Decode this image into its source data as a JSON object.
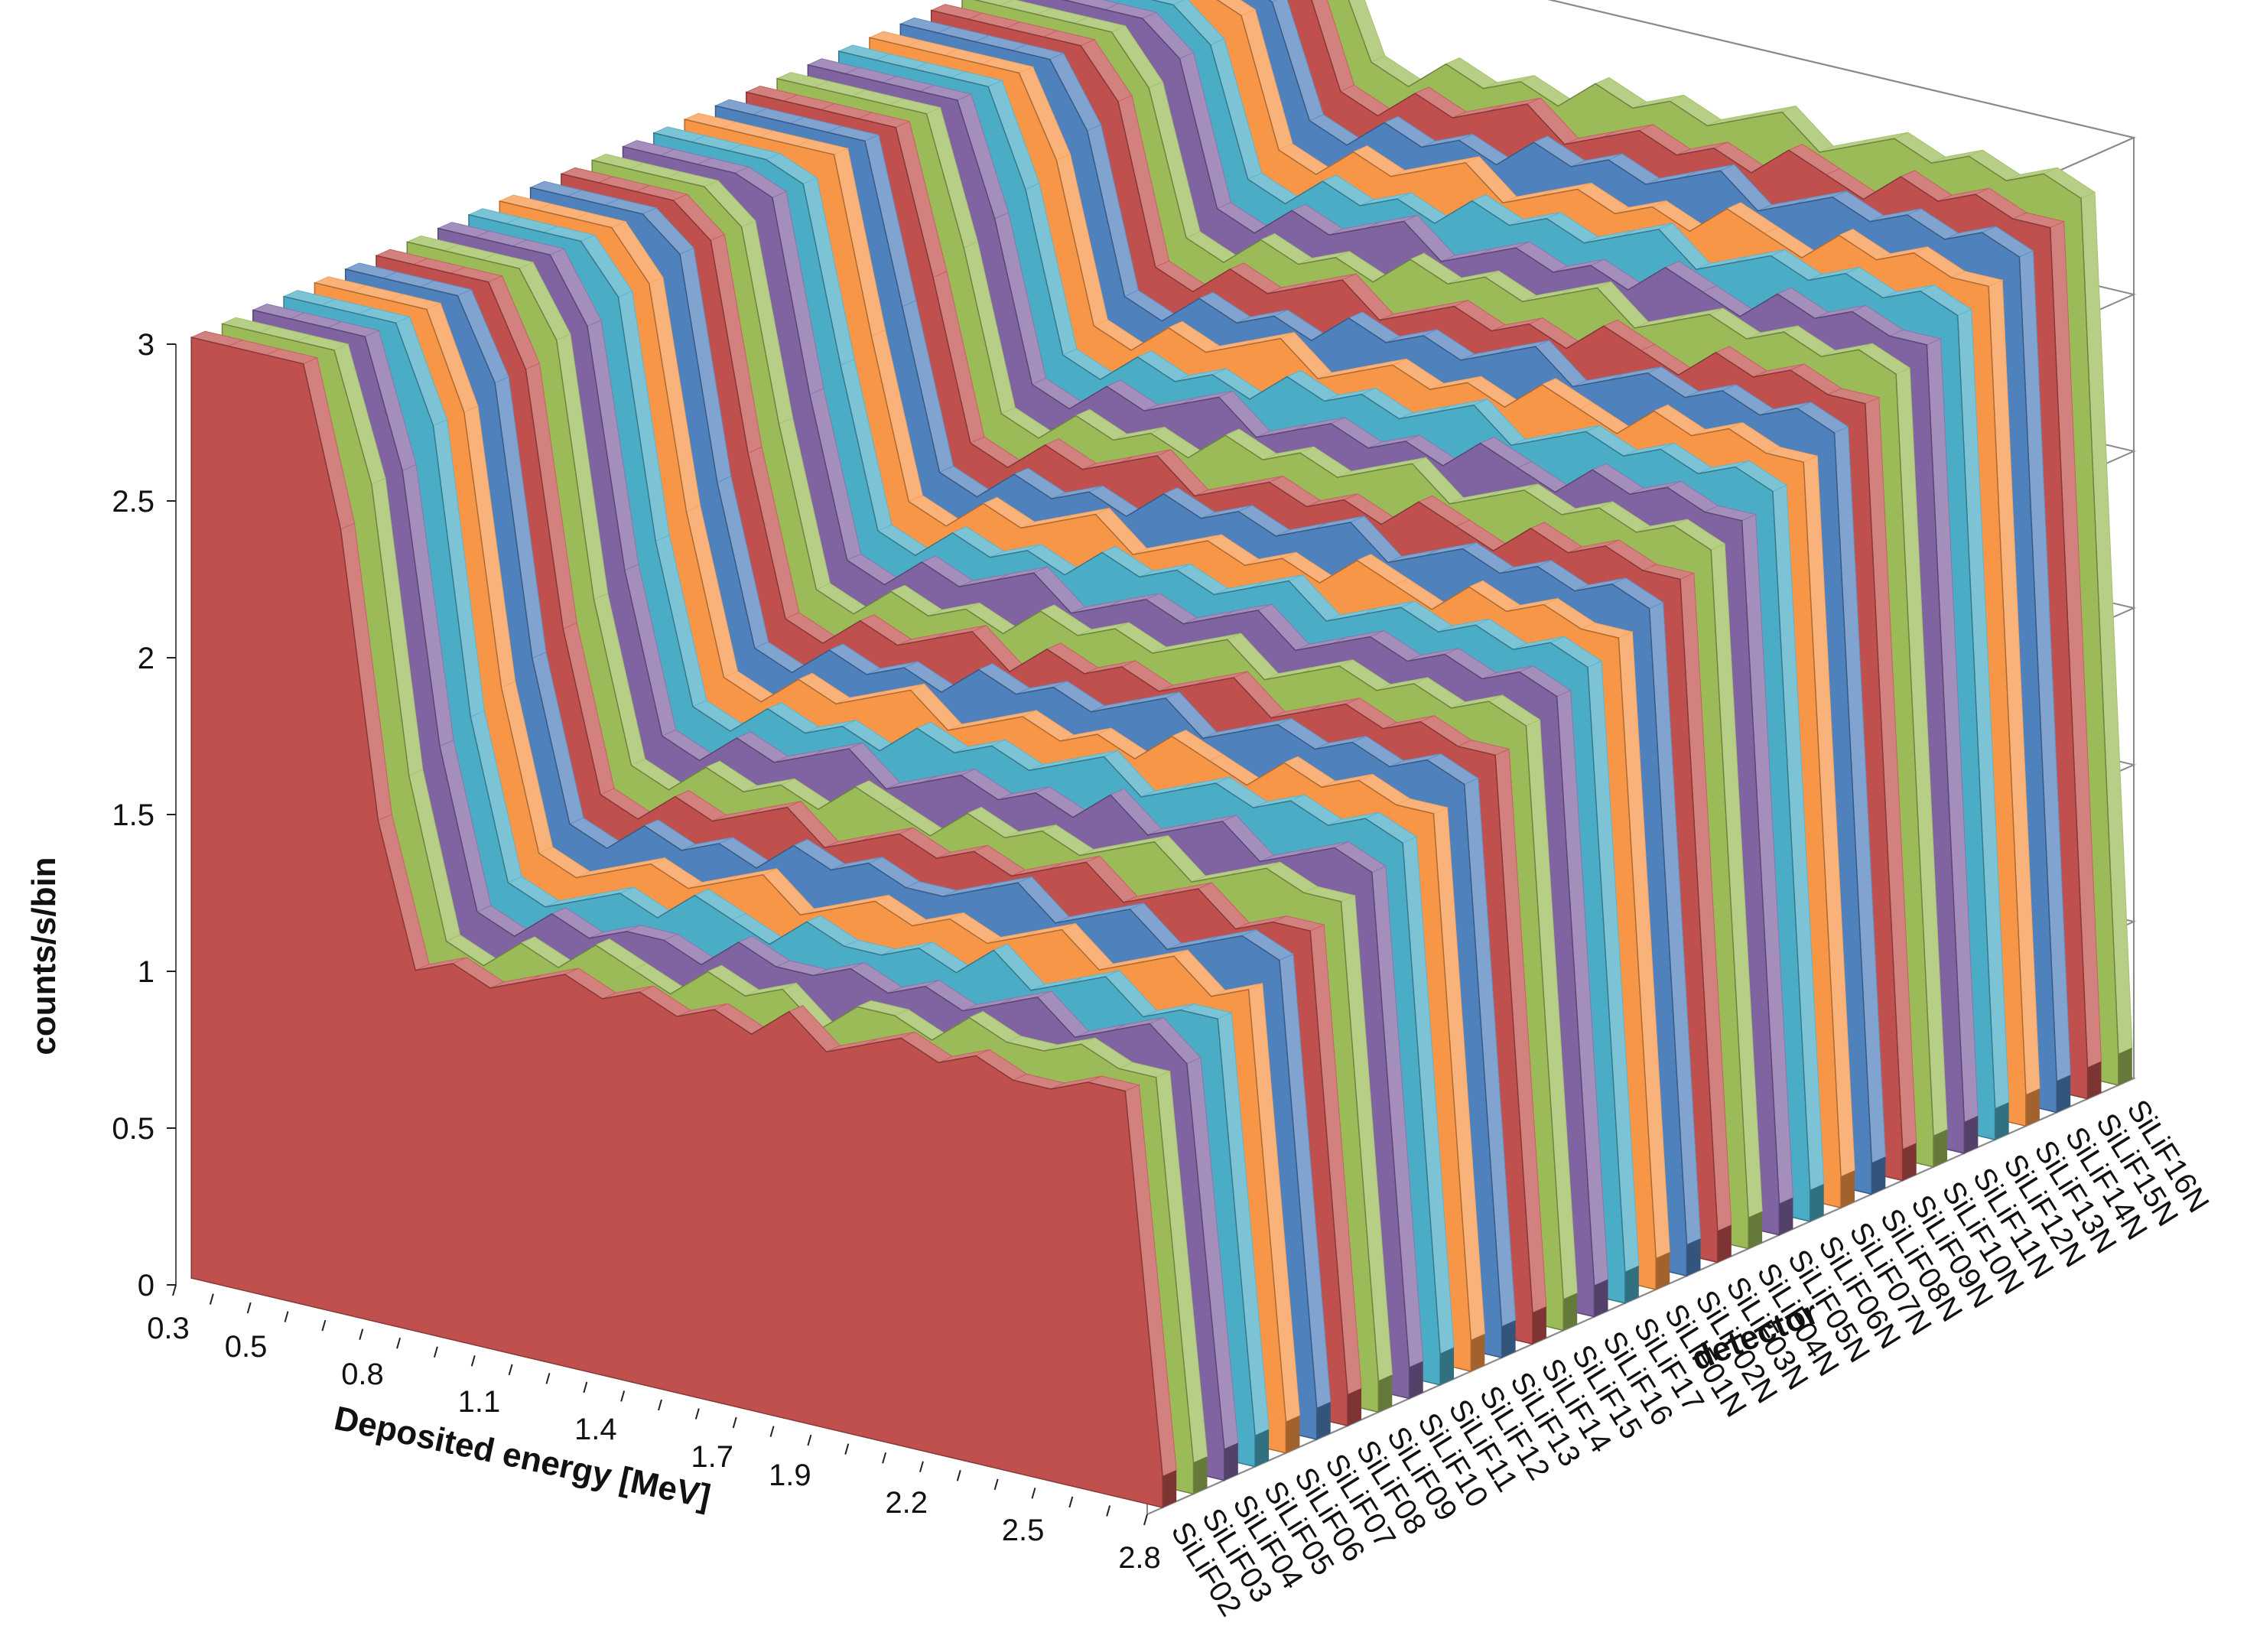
{
  "chart_data": {
    "type": "area",
    "subtype": "3d-ribbon",
    "title": "",
    "xlabel": "Deposited energy [MeV]",
    "ylabel": "counts/s/bin",
    "zlabel": "detector",
    "ylim": [
      0,
      3
    ],
    "yticks": [
      "0",
      "0.5",
      "1",
      "1.5",
      "2",
      "2.5",
      "3"
    ],
    "xticks": [
      "0.3",
      "0.5",
      "0.8",
      "1.1",
      "1.4",
      "1.7",
      "1.9",
      "2.2",
      "2.5",
      "2.8"
    ],
    "x_range": [
      0.3,
      2.8
    ],
    "values_clipped_at_ylim": true,
    "grid": true,
    "legend": "none",
    "series_colors": [
      "#c0504d",
      "#9bbb59",
      "#8064a2",
      "#4bacc6",
      "#f79646",
      "#4f81bd"
    ],
    "series": [
      {
        "name": "SiLiF02",
        "values": [
          3.0,
          3.0,
          3.0,
          3.0,
          2.5,
          1.6,
          1.15,
          1.2,
          1.15,
          1.2,
          1.25,
          1.2,
          1.25,
          1.2,
          1.25,
          1.2,
          1.3,
          1.2,
          1.25,
          1.3,
          1.25,
          1.3,
          1.25,
          1.25,
          1.3,
          1.3,
          0.1
        ]
      },
      {
        "name": "SiLiF03",
        "values": [
          3.0,
          3.0,
          3.0,
          3.0,
          2.6,
          1.7,
          1.2,
          1.15,
          1.25,
          1.2,
          1.3,
          1.25,
          1.2,
          1.3,
          1.25,
          1.3,
          1.2,
          1.3,
          1.3,
          1.25,
          1.35,
          1.3,
          1.3,
          1.35,
          1.3,
          1.3,
          0.1
        ]
      },
      {
        "name": "SiLiF04",
        "values": [
          3.0,
          3.0,
          3.0,
          3.0,
          2.6,
          1.75,
          1.25,
          1.2,
          1.3,
          1.25,
          1.3,
          1.3,
          1.25,
          1.35,
          1.3,
          1.3,
          1.35,
          1.3,
          1.35,
          1.3,
          1.35,
          1.4,
          1.3,
          1.35,
          1.4,
          1.3,
          0.1
        ]
      },
      {
        "name": "SiLiF05",
        "values": [
          3.0,
          3.0,
          3.0,
          3.0,
          2.7,
          1.8,
          1.3,
          1.25,
          1.3,
          1.35,
          1.3,
          1.4,
          1.35,
          1.3,
          1.4,
          1.35,
          1.35,
          1.4,
          1.35,
          1.45,
          1.35,
          1.4,
          1.45,
          1.35,
          1.4,
          1.4,
          0.1
        ]
      },
      {
        "name": "SiLiF06",
        "values": [
          3.0,
          3.0,
          3.0,
          3.0,
          2.7,
          1.85,
          1.35,
          1.3,
          1.35,
          1.4,
          1.35,
          1.4,
          1.45,
          1.35,
          1.4,
          1.45,
          1.4,
          1.45,
          1.4,
          1.45,
          1.5,
          1.4,
          1.45,
          1.5,
          1.4,
          1.45,
          0.1
        ]
      },
      {
        "name": "SiLiF07",
        "values": [
          3.0,
          3.0,
          3.0,
          3.0,
          2.75,
          1.9,
          1.4,
          1.35,
          1.45,
          1.4,
          1.45,
          1.4,
          1.5,
          1.45,
          1.5,
          1.45,
          1.45,
          1.5,
          1.55,
          1.45,
          1.5,
          1.55,
          1.45,
          1.5,
          1.55,
          1.5,
          0.1
        ]
      },
      {
        "name": "SiLiF08",
        "values": [
          3.0,
          3.0,
          3.0,
          3.0,
          2.75,
          1.95,
          1.45,
          1.4,
          1.5,
          1.45,
          1.5,
          1.55,
          1.45,
          1.5,
          1.55,
          1.5,
          1.55,
          1.5,
          1.55,
          1.6,
          1.5,
          1.55,
          1.6,
          1.5,
          1.55,
          1.55,
          0.1
        ]
      },
      {
        "name": "SiLiF09",
        "values": [
          3.0,
          3.0,
          3.0,
          3.0,
          2.8,
          2.0,
          1.5,
          1.45,
          1.55,
          1.5,
          1.55,
          1.5,
          1.6,
          1.55,
          1.5,
          1.6,
          1.55,
          1.6,
          1.55,
          1.6,
          1.65,
          1.55,
          1.6,
          1.65,
          1.6,
          1.6,
          0.1
        ]
      },
      {
        "name": "SiLiF10",
        "values": [
          3.0,
          3.0,
          3.0,
          3.0,
          2.8,
          2.05,
          1.55,
          1.5,
          1.6,
          1.55,
          1.6,
          1.65,
          1.55,
          1.6,
          1.65,
          1.6,
          1.65,
          1.6,
          1.7,
          1.6,
          1.65,
          1.7,
          1.6,
          1.65,
          1.7,
          1.65,
          0.1
        ]
      },
      {
        "name": "SiLiF11",
        "values": [
          3.0,
          3.0,
          3.0,
          3.0,
          2.85,
          2.1,
          1.6,
          1.55,
          1.65,
          1.6,
          1.65,
          1.6,
          1.7,
          1.65,
          1.7,
          1.65,
          1.7,
          1.75,
          1.65,
          1.7,
          1.75,
          1.7,
          1.75,
          1.7,
          1.75,
          1.7,
          0.1
        ]
      },
      {
        "name": "SiLiF12",
        "values": [
          3.0,
          3.0,
          3.0,
          3.0,
          2.85,
          2.15,
          1.65,
          1.6,
          1.7,
          1.65,
          1.7,
          1.75,
          1.65,
          1.7,
          1.75,
          1.7,
          1.75,
          1.7,
          1.8,
          1.75,
          1.7,
          1.8,
          1.75,
          1.8,
          1.75,
          1.75,
          0.1
        ]
      },
      {
        "name": "SiLiF13",
        "values": [
          3.0,
          3.0,
          3.0,
          3.0,
          2.9,
          2.2,
          1.7,
          1.65,
          1.75,
          1.7,
          1.75,
          1.7,
          1.8,
          1.75,
          1.8,
          1.75,
          1.8,
          1.85,
          1.75,
          1.8,
          1.85,
          1.8,
          1.85,
          1.8,
          1.85,
          1.8,
          0.1
        ]
      },
      {
        "name": "SiLiF14",
        "values": [
          3.0,
          3.0,
          3.0,
          3.0,
          2.9,
          2.25,
          1.75,
          1.7,
          1.8,
          1.75,
          1.8,
          1.85,
          1.75,
          1.85,
          1.8,
          1.85,
          1.8,
          1.85,
          1.9,
          1.8,
          1.85,
          1.9,
          1.85,
          1.9,
          1.85,
          1.85,
          0.1
        ]
      },
      {
        "name": "SiLiF15",
        "values": [
          3.0,
          3.0,
          3.0,
          3.0,
          2.9,
          2.3,
          1.8,
          1.75,
          1.85,
          1.8,
          1.85,
          1.8,
          1.9,
          1.85,
          1.9,
          1.85,
          1.9,
          1.95,
          1.85,
          1.9,
          1.95,
          1.9,
          1.95,
          1.9,
          1.95,
          1.9,
          0.1
        ]
      },
      {
        "name": "SiLiF16",
        "values": [
          3.0,
          3.0,
          3.0,
          3.0,
          2.95,
          2.35,
          1.85,
          1.8,
          1.9,
          1.85,
          1.9,
          1.95,
          1.85,
          1.9,
          1.95,
          1.9,
          1.95,
          2.0,
          1.9,
          1.95,
          2.0,
          1.95,
          2.0,
          1.95,
          2.0,
          1.95,
          0.1
        ]
      },
      {
        "name": "SiLiF17",
        "values": [
          3.0,
          3.0,
          3.0,
          3.0,
          2.95,
          2.4,
          1.9,
          1.85,
          1.95,
          1.9,
          1.95,
          1.9,
          2.0,
          1.95,
          2.0,
          1.95,
          2.0,
          2.05,
          1.95,
          2.0,
          2.05,
          2.0,
          2.05,
          2.0,
          2.05,
          2.0,
          0.1
        ]
      },
      {
        "name": "SiLiF01N",
        "values": [
          3.0,
          3.0,
          3.0,
          3.0,
          3.0,
          2.45,
          1.95,
          1.9,
          2.0,
          1.95,
          2.0,
          2.05,
          1.95,
          2.0,
          2.05,
          2.0,
          2.05,
          2.0,
          2.1,
          2.05,
          2.0,
          2.1,
          2.05,
          2.1,
          2.05,
          2.05,
          0.1
        ]
      },
      {
        "name": "SiLiF02N",
        "values": [
          3.0,
          3.0,
          3.0,
          3.0,
          3.0,
          2.5,
          2.0,
          1.95,
          2.05,
          2.0,
          2.05,
          2.0,
          2.1,
          2.05,
          2.1,
          2.05,
          2.1,
          2.15,
          2.05,
          2.1,
          2.15,
          2.1,
          2.15,
          2.1,
          2.15,
          2.1,
          0.1
        ]
      },
      {
        "name": "SiLiF03N",
        "values": [
          3.0,
          3.0,
          3.0,
          3.0,
          3.0,
          2.55,
          2.05,
          2.0,
          2.1,
          2.05,
          2.1,
          2.15,
          2.05,
          2.1,
          2.15,
          2.1,
          2.15,
          2.1,
          2.2,
          2.15,
          2.1,
          2.2,
          2.15,
          2.2,
          2.15,
          2.15,
          0.1
        ]
      },
      {
        "name": "SiLiF04N",
        "values": [
          3.0,
          3.0,
          3.0,
          3.0,
          3.0,
          2.6,
          2.1,
          2.05,
          2.15,
          2.1,
          2.15,
          2.1,
          2.2,
          2.15,
          2.2,
          2.15,
          2.2,
          2.25,
          2.15,
          2.2,
          2.25,
          2.2,
          2.25,
          2.2,
          2.25,
          2.2,
          0.1
        ]
      },
      {
        "name": "SiLiF05N",
        "values": [
          3.0,
          3.0,
          3.0,
          3.0,
          3.0,
          2.65,
          2.15,
          2.1,
          2.2,
          2.15,
          2.2,
          2.25,
          2.15,
          2.2,
          2.25,
          2.2,
          2.25,
          2.2,
          2.3,
          2.25,
          2.2,
          2.3,
          2.25,
          2.3,
          2.25,
          2.25,
          0.1
        ]
      },
      {
        "name": "SiLiF06N",
        "values": [
          3.0,
          3.0,
          3.0,
          3.0,
          3.0,
          2.7,
          2.2,
          2.15,
          2.25,
          2.2,
          2.25,
          2.2,
          2.3,
          2.25,
          2.3,
          2.25,
          2.3,
          2.35,
          2.25,
          2.3,
          2.35,
          2.3,
          2.35,
          2.3,
          2.35,
          2.3,
          0.1
        ]
      },
      {
        "name": "SiLiF07N",
        "values": [
          3.0,
          3.0,
          3.0,
          3.0,
          3.0,
          2.75,
          2.25,
          2.2,
          2.3,
          2.25,
          2.3,
          2.35,
          2.25,
          2.3,
          2.35,
          2.3,
          2.35,
          2.3,
          2.4,
          2.35,
          2.3,
          2.4,
          2.35,
          2.4,
          2.35,
          2.35,
          0.1
        ]
      },
      {
        "name": "SiLiF08N",
        "values": [
          3.0,
          3.0,
          3.0,
          3.0,
          3.0,
          2.8,
          2.3,
          2.25,
          2.35,
          2.3,
          2.35,
          2.3,
          2.4,
          2.35,
          2.4,
          2.35,
          2.4,
          2.45,
          2.35,
          2.4,
          2.45,
          2.4,
          2.45,
          2.4,
          2.45,
          2.4,
          0.1
        ]
      },
      {
        "name": "SiLiF09N",
        "values": [
          3.0,
          3.0,
          3.0,
          3.0,
          3.0,
          2.85,
          2.35,
          2.3,
          2.4,
          2.35,
          2.4,
          2.45,
          2.35,
          2.4,
          2.45,
          2.4,
          2.45,
          2.4,
          2.5,
          2.45,
          2.4,
          2.5,
          2.45,
          2.5,
          2.45,
          2.45,
          0.1
        ]
      },
      {
        "name": "SiLiF10N",
        "values": [
          3.0,
          3.0,
          3.0,
          3.0,
          3.0,
          2.85,
          2.4,
          2.35,
          2.45,
          2.4,
          2.45,
          2.4,
          2.5,
          2.45,
          2.5,
          2.45,
          2.5,
          2.55,
          2.45,
          2.5,
          2.55,
          2.5,
          2.55,
          2.5,
          2.55,
          2.5,
          0.1
        ]
      },
      {
        "name": "SiLiF11N",
        "values": [
          3.0,
          3.0,
          3.0,
          3.0,
          3.0,
          2.9,
          2.45,
          2.4,
          2.5,
          2.45,
          2.5,
          2.55,
          2.45,
          2.5,
          2.55,
          2.5,
          2.55,
          2.5,
          2.6,
          2.55,
          2.5,
          2.6,
          2.55,
          2.6,
          2.55,
          2.55,
          0.1
        ]
      },
      {
        "name": "SiLiF12N",
        "values": [
          3.0,
          3.0,
          3.0,
          3.0,
          3.0,
          2.9,
          2.5,
          2.45,
          2.55,
          2.5,
          2.55,
          2.5,
          2.6,
          2.55,
          2.6,
          2.55,
          2.6,
          2.65,
          2.55,
          2.6,
          2.65,
          2.6,
          2.65,
          2.6,
          2.65,
          2.6,
          0.1
        ]
      },
      {
        "name": "SiLiF13N",
        "values": [
          3.0,
          3.0,
          3.0,
          3.0,
          3.0,
          2.95,
          2.55,
          2.5,
          2.6,
          2.55,
          2.6,
          2.65,
          2.55,
          2.6,
          2.65,
          2.6,
          2.65,
          2.6,
          2.7,
          2.65,
          2.6,
          2.7,
          2.65,
          2.7,
          2.65,
          2.65,
          0.1
        ]
      },
      {
        "name": "SiLiF14N",
        "values": [
          3.0,
          3.0,
          3.0,
          3.0,
          3.0,
          2.95,
          2.6,
          2.55,
          2.65,
          2.6,
          2.65,
          2.6,
          2.7,
          2.65,
          2.7,
          2.65,
          2.7,
          2.75,
          2.65,
          2.7,
          2.75,
          2.7,
          2.75,
          2.7,
          2.75,
          2.7,
          0.1
        ]
      },
      {
        "name": "SiLiF15N",
        "values": [
          3.0,
          3.0,
          3.0,
          3.0,
          3.0,
          3.0,
          2.65,
          2.6,
          2.7,
          2.65,
          2.7,
          2.75,
          2.65,
          2.7,
          2.75,
          2.7,
          2.75,
          2.7,
          2.8,
          2.75,
          2.7,
          2.8,
          2.75,
          2.8,
          2.75,
          2.75,
          0.1
        ]
      },
      {
        "name": "SiLiF16N",
        "values": [
          3.0,
          3.0,
          3.0,
          3.0,
          3.0,
          3.0,
          2.7,
          2.65,
          2.75,
          2.7,
          2.75,
          2.7,
          2.8,
          2.75,
          2.8,
          2.75,
          2.8,
          2.85,
          2.75,
          2.8,
          2.85,
          2.8,
          2.85,
          2.8,
          2.85,
          2.8,
          0.1
        ]
      }
    ]
  }
}
